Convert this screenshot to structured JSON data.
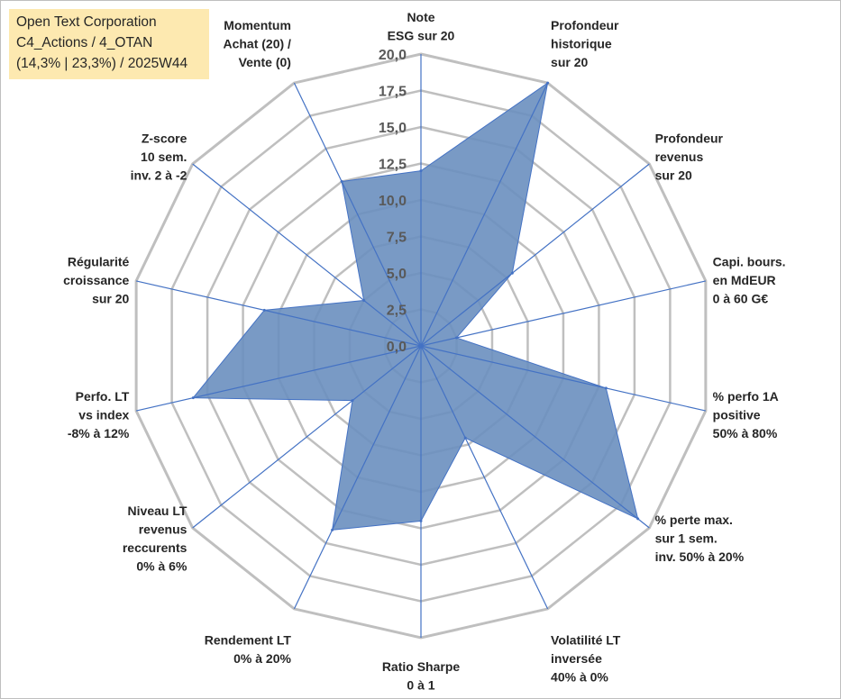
{
  "info_box": {
    "line1": "Open Text Corporation",
    "line2": "C4_Actions / 4_OTAN",
    "line3": "(14,3% | 23,3%) / 2025W44"
  },
  "chart_data": {
    "type": "radar",
    "title": "Open Text Corporation",
    "rmin": 0,
    "rmax": 20,
    "tick_step": 2.5,
    "tick_labels": [
      "0,0",
      "2,5",
      "5,0",
      "7,5",
      "10,0",
      "12,5",
      "15,0",
      "17,5",
      "20,0"
    ],
    "categories": [
      {
        "label": [
          "Note",
          "ESG sur 20"
        ]
      },
      {
        "label": [
          "Profondeur",
          "historique",
          "sur 20"
        ]
      },
      {
        "label": [
          "Profondeur",
          "revenus",
          "sur 20"
        ]
      },
      {
        "label": [
          "Capi. bours.",
          "en MdEUR",
          "0 à 60 G€"
        ]
      },
      {
        "label": [
          "% perfo 1A",
          "positive",
          "50% à 80%"
        ]
      },
      {
        "label": [
          "% perte max.",
          "sur 1 sem.",
          "inv. 50% à 20%"
        ]
      },
      {
        "label": [
          "Volatilité LT",
          "inversée",
          "40% à 0%"
        ]
      },
      {
        "label": [
          "Ratio Sharpe",
          "0 à 1"
        ]
      },
      {
        "label": [
          "Rendement LT",
          "0% à 20%"
        ]
      },
      {
        "label": [
          "Niveau LT",
          "revenus",
          "reccurents",
          "0% à 6%"
        ]
      },
      {
        "label": [
          "Perfo. LT",
          "vs index",
          "-8% à 12%"
        ]
      },
      {
        "label": [
          "Régularité",
          "croissance",
          "sur 20"
        ]
      },
      {
        "label": [
          "Z-score",
          "10 sem.",
          "inv. 2 à -2"
        ]
      },
      {
        "label": [
          "Momentum",
          "Achat (20) /",
          "Vente (0)"
        ]
      }
    ],
    "series": [
      {
        "name": "Open Text Corporation",
        "values": [
          12.0,
          20.0,
          8.0,
          2.5,
          13.0,
          19.0,
          7.0,
          12.0,
          14.0,
          6.0,
          16.0,
          11.0,
          5.0,
          12.5
        ],
        "fill": "#6a8fbf",
        "stroke": "#4472c4"
      }
    ],
    "colors": {
      "grid": "#bfbfbf",
      "spoke": "#4472c4",
      "highlight_box": "#fde9b0"
    }
  }
}
